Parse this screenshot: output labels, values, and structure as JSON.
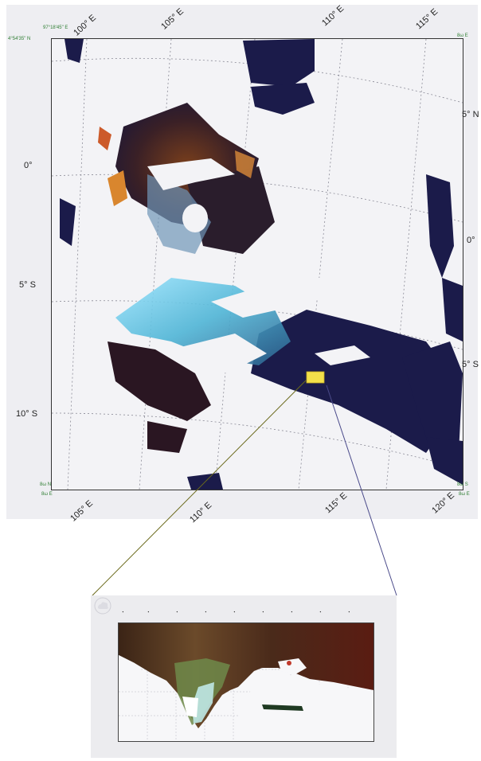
{
  "main_map": {
    "corner_labels": {
      "top_left_lat": "4°54'35\" N",
      "top_left_lon": "97°18'45\" E",
      "top_right_lon": "8ω E",
      "bottom_left_lat": "8ω N",
      "bottom_left_lon": "8ω E",
      "bottom_right_lat": "8ω S",
      "bottom_right_lon": "8ω E"
    },
    "top_lon_labels": [
      "100° E",
      "105° E",
      "110° E",
      "115° E"
    ],
    "bottom_lon_labels": [
      "105° E",
      "110° E",
      "115° E",
      "120° E"
    ],
    "left_lat_labels": [
      "0°",
      "5° S",
      "10° S"
    ],
    "right_lat_labels": [
      "5° N",
      "0°",
      "5° S"
    ],
    "highlight_color": "#f3e04a"
  },
  "inset_map": {
    "cloud_icon": "cloud-icon"
  }
}
